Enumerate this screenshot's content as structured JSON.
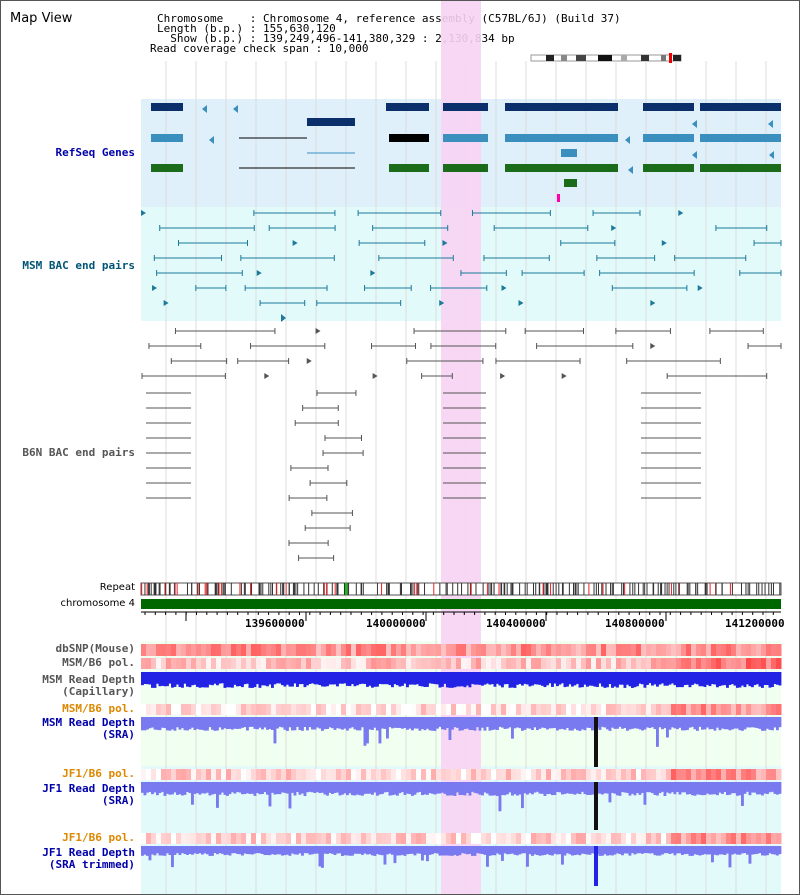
{
  "header": {
    "title": "Map View",
    "chromosome_line": "Chromosome    : Chromosome 4, reference assembly (C57BL/6J) (Build 37)",
    "length_line": "Length (b.p.) : 155,630,120",
    "show_line": "  Show (b.p.) : 139,249,496-141,380,329 : 2,130,834 bp",
    "coverage_line": "Read coverage check span : 10,000"
  },
  "tracks": {
    "refseq": "RefSeq Genes",
    "msm_bac": "MSM BAC end pairs",
    "b6n_bac": "B6N BAC end pairs",
    "repeat": "Repeat",
    "chromosome": "chromosome 4",
    "dbsnp": "dbSNP(Mouse)",
    "msm_b6_pol_1": "MSM/B6 pol.",
    "msm_cap_1": "MSM Read Depth",
    "msm_cap_2": "(Capillary)",
    "msm_b6_pol_2": "MSM/B6 pol.",
    "msm_sra_1": "MSM Read Depth",
    "msm_sra_2": "(SRA)",
    "jf1_b6_pol_1": "JF1/B6 pol.",
    "jf1_sra_1": "JF1 Read Depth",
    "jf1_sra_2": "(SRA)",
    "jf1_b6_pol_2": "JF1/B6 pol.",
    "jf1_trim_1": "JF1 Read Depth",
    "jf1_trim_2": "(SRA trimmed)"
  },
  "axis": {
    "ticks": [
      "139600000",
      "140000000",
      "140400000",
      "140800000",
      "141200000"
    ]
  },
  "colors": {
    "refseq_label": "#0000aa",
    "msm_label": "#005577",
    "b6n_label": "#555555",
    "pol_label": "#dd8800",
    "highlight": "#f7d3f3",
    "depth_blue": "#2323e6",
    "depth_lightblue": "#7a7af0",
    "chromosome_green": "#006600"
  }
}
